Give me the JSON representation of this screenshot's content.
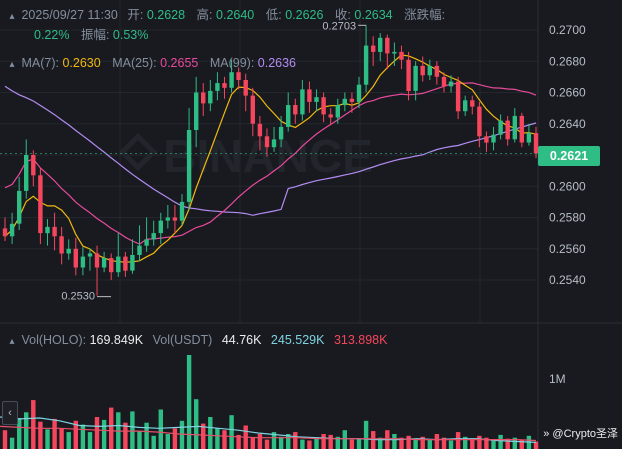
{
  "header": {
    "datetime": "2025/09/27 11:30",
    "open_label": "开:",
    "open": "0.2628",
    "high_label": "高:",
    "high": "0.2640",
    "low_label": "低:",
    "low": "0.2626",
    "close_label": "收:",
    "close": "0.2634",
    "change_label": "涨跌幅:",
    "change": "0.22%",
    "amplitude_label": "振幅:",
    "amplitude": "0.53%"
  },
  "ma_legend": {
    "ma7_label": "MA(7):",
    "ma7": "0.2630",
    "ma25_label": "MA(25):",
    "ma25": "0.2655",
    "ma99_label": "MA(99):",
    "ma99": "0.2636"
  },
  "vol_legend": {
    "vol_holo_label": "Vol(HOLO):",
    "vol_holo": "169.849K",
    "vol_usdt_label": "Vol(USDT)",
    "vol_usdt": "44.76K",
    "vol_ma1": "245.529K",
    "vol_ma2": "313.898K"
  },
  "current_price": "0.2621",
  "watermark": "@Crypto圣泽",
  "colors": {
    "up": "#2ebd85",
    "down": "#f6465d",
    "ma7": "#f0b90b",
    "ma25": "#e84a9b",
    "ma99": "#b48cf2",
    "vol_ma1": "#7fd3e0",
    "vol_ma2": "#e8506a"
  },
  "chart_data": {
    "type": "candlestick",
    "y_ticks": [
      "0.2700",
      "0.2680",
      "0.2660",
      "0.2640",
      "0.2620",
      "0.2600",
      "0.2580",
      "0.2560",
      "0.2540"
    ],
    "vol_ticks": [
      "1M"
    ],
    "ylim": [
      0.253,
      0.27
    ],
    "annotations": {
      "high": "0.2703",
      "low": "0.2530"
    },
    "candles": [
      [
        0.2573,
        0.2568,
        0.258,
        0.2565
      ],
      [
        0.2568,
        0.2576,
        0.2583,
        0.2563
      ],
      [
        0.2576,
        0.2597,
        0.2606,
        0.2572
      ],
      [
        0.2597,
        0.262,
        0.263,
        0.2592
      ],
      [
        0.262,
        0.2607,
        0.2623,
        0.26
      ],
      [
        0.2607,
        0.257,
        0.2612,
        0.2563
      ],
      [
        0.257,
        0.2574,
        0.2579,
        0.2562
      ],
      [
        0.2574,
        0.2568,
        0.2583,
        0.2559
      ],
      [
        0.2568,
        0.2557,
        0.2574,
        0.255
      ],
      [
        0.2557,
        0.256,
        0.2566,
        0.2553
      ],
      [
        0.256,
        0.2548,
        0.2567,
        0.2543
      ],
      [
        0.2548,
        0.2555,
        0.2561,
        0.2543
      ],
      [
        0.2555,
        0.2557,
        0.256,
        0.2546
      ],
      [
        0.2557,
        0.2548,
        0.2562,
        0.253
      ],
      [
        0.2548,
        0.2554,
        0.2558,
        0.2545
      ],
      [
        0.2554,
        0.2545,
        0.2557,
        0.254
      ],
      [
        0.2545,
        0.2555,
        0.257,
        0.2542
      ],
      [
        0.2555,
        0.2546,
        0.2558,
        0.2542
      ],
      [
        0.2546,
        0.2556,
        0.2566,
        0.2544
      ],
      [
        0.2556,
        0.2562,
        0.2575,
        0.2552
      ],
      [
        0.2562,
        0.2566,
        0.258,
        0.2558
      ],
      [
        0.2566,
        0.257,
        0.2578,
        0.2562
      ],
      [
        0.257,
        0.2578,
        0.2583,
        0.2563
      ],
      [
        0.2578,
        0.258,
        0.2588,
        0.2573
      ],
      [
        0.258,
        0.2578,
        0.2588,
        0.257
      ],
      [
        0.2578,
        0.259,
        0.2595,
        0.2575
      ],
      [
        0.259,
        0.2636,
        0.265,
        0.2585
      ],
      [
        0.2636,
        0.266,
        0.267,
        0.2625
      ],
      [
        0.266,
        0.2653,
        0.2666,
        0.2645
      ],
      [
        0.2653,
        0.2661,
        0.2668,
        0.2648
      ],
      [
        0.2661,
        0.2666,
        0.2673,
        0.2655
      ],
      [
        0.2666,
        0.2663,
        0.267,
        0.2656
      ],
      [
        0.2663,
        0.2673,
        0.2681,
        0.266
      ],
      [
        0.2673,
        0.2668,
        0.2676,
        0.2662
      ],
      [
        0.2668,
        0.2658,
        0.2672,
        0.2648
      ],
      [
        0.2658,
        0.264,
        0.2663,
        0.2632
      ],
      [
        0.264,
        0.2632,
        0.2645,
        0.2623
      ],
      [
        0.2632,
        0.2625,
        0.2637,
        0.2619
      ],
      [
        0.2625,
        0.263,
        0.2638,
        0.2622
      ],
      [
        0.263,
        0.2638,
        0.2645,
        0.2625
      ],
      [
        0.2638,
        0.2652,
        0.266,
        0.2635
      ],
      [
        0.2652,
        0.2646,
        0.2656,
        0.264
      ],
      [
        0.2646,
        0.2662,
        0.2668,
        0.2642
      ],
      [
        0.2662,
        0.2654,
        0.2667,
        0.2647
      ],
      [
        0.2654,
        0.2657,
        0.2662,
        0.2648
      ],
      [
        0.2657,
        0.2646,
        0.266,
        0.2641
      ],
      [
        0.2646,
        0.2644,
        0.265,
        0.2639
      ],
      [
        0.2644,
        0.2652,
        0.2656,
        0.264
      ],
      [
        0.2652,
        0.2656,
        0.266,
        0.2648
      ],
      [
        0.2656,
        0.2654,
        0.266,
        0.2647
      ],
      [
        0.2654,
        0.2665,
        0.267,
        0.265
      ],
      [
        0.2665,
        0.269,
        0.2703,
        0.266
      ],
      [
        0.269,
        0.2686,
        0.2696,
        0.2677
      ],
      [
        0.2686,
        0.2695,
        0.2698,
        0.268
      ],
      [
        0.2695,
        0.2685,
        0.2697,
        0.2675
      ],
      [
        0.2685,
        0.2686,
        0.2692,
        0.2677
      ],
      [
        0.2686,
        0.2681,
        0.269,
        0.2675
      ],
      [
        0.2681,
        0.2661,
        0.2686,
        0.2655
      ],
      [
        0.2661,
        0.2677,
        0.268,
        0.2655
      ],
      [
        0.2677,
        0.2671,
        0.2683,
        0.2667
      ],
      [
        0.2671,
        0.2677,
        0.2681,
        0.2668
      ],
      [
        0.2677,
        0.267,
        0.268,
        0.2665
      ],
      [
        0.267,
        0.2664,
        0.2673,
        0.266
      ],
      [
        0.2664,
        0.2667,
        0.2671,
        0.266
      ],
      [
        0.2667,
        0.2648,
        0.267,
        0.2643
      ],
      [
        0.2648,
        0.2655,
        0.2658,
        0.2645
      ],
      [
        0.2655,
        0.2651,
        0.2658,
        0.2646
      ],
      [
        0.2651,
        0.2632,
        0.2654,
        0.2625
      ],
      [
        0.2632,
        0.2628,
        0.2635,
        0.2622
      ],
      [
        0.2628,
        0.2633,
        0.2638,
        0.2623
      ],
      [
        0.2633,
        0.2642,
        0.2646,
        0.263
      ],
      [
        0.2642,
        0.263,
        0.2645,
        0.2626
      ],
      [
        0.263,
        0.2645,
        0.265,
        0.2628
      ],
      [
        0.2645,
        0.2628,
        0.2647,
        0.2625
      ],
      [
        0.2628,
        0.2634,
        0.264,
        0.2626
      ],
      [
        0.2634,
        0.2621,
        0.2638,
        0.2618
      ]
    ],
    "volume_relative": [
      0.2,
      0.12,
      0.33,
      0.39,
      0.52,
      0.29,
      0.21,
      0.32,
      0.22,
      0.18,
      0.3,
      0.26,
      0.18,
      0.34,
      0.31,
      0.44,
      0.39,
      0.28,
      0.4,
      0.19,
      0.28,
      0.14,
      0.42,
      0.16,
      0.22,
      0.3,
      1.0,
      0.53,
      0.27,
      0.34,
      0.22,
      0.2,
      0.36,
      0.15,
      0.25,
      0.12,
      0.16,
      0.1,
      0.18,
      0.13,
      0.16,
      0.18,
      0.1,
      0.09,
      0.12,
      0.16,
      0.15,
      0.13,
      0.2,
      0.1,
      0.11,
      0.3,
      0.19,
      0.12,
      0.2,
      0.16,
      0.12,
      0.14,
      0.11,
      0.13,
      0.1,
      0.16,
      0.12,
      0.09,
      0.18,
      0.13,
      0.1,
      0.14,
      0.12,
      0.1,
      0.15,
      0.11,
      0.12,
      0.1,
      0.14,
      0.08
    ],
    "vol_ma1_relative": [
      0.34,
      0.32,
      0.33,
      0.3,
      0.25,
      0.24,
      0.25,
      0.23,
      0.22,
      0.23,
      0.24,
      0.22,
      0.2,
      0.17,
      0.15,
      0.13,
      0.12,
      0.11,
      0.11,
      0.1,
      0.1,
      0.11,
      0.1,
      0.11,
      0.11,
      0.09,
      0.08,
      0.07
    ],
    "vol_ma2_relative": [
      0.24,
      0.23,
      0.22,
      0.22,
      0.21,
      0.2,
      0.19,
      0.19,
      0.18,
      0.16,
      0.15,
      0.14,
      0.13,
      0.12,
      0.12,
      0.12,
      0.11,
      0.11,
      0.11,
      0.11,
      0.11,
      0.1,
      0.1,
      0.1,
      0.1,
      0.1,
      0.1,
      0.09
    ]
  }
}
